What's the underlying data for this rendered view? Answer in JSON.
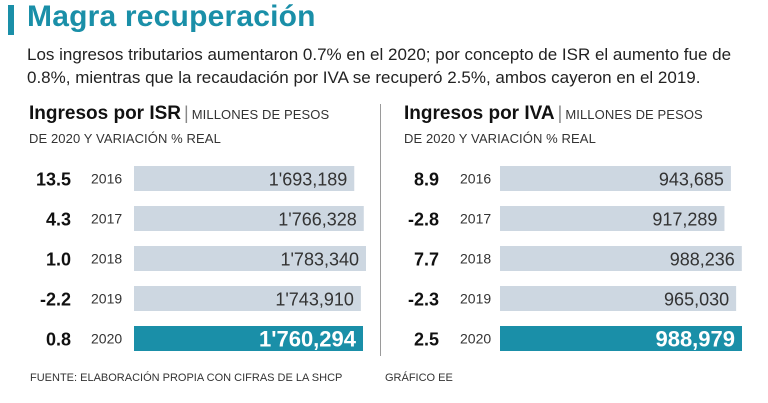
{
  "title": "Magra recuperación",
  "subtitle": "Los ingresos tributarios aumentaron 0.7% en el 2020; por concepto de ISR el aumento fue de 0.8%, mientras que la recaudación por IVA se recuperó 2.5%, ambos cayeron en el 2019.",
  "colors": {
    "accent": "#1a8fa8",
    "bar": "#cdd7e1",
    "text": "#111111"
  },
  "chart_data": [
    {
      "type": "bar",
      "title": "Ingresos por ISR",
      "units_line1": "MILLONES DE PESOS",
      "units_line2": "DE 2020 Y VARIACIÓN % REAL",
      "categories": [
        "2016",
        "2017",
        "2018",
        "2019",
        "2020"
      ],
      "values": [
        1693189,
        1766328,
        1783340,
        1743910,
        1760294
      ],
      "value_labels": [
        "1'693,189",
        "1'766,328",
        "1'783,340",
        "1'743,910",
        "1'760,294"
      ],
      "variation": [
        "13.5",
        "4.3",
        "1.0",
        "-2.2",
        "0.8"
      ],
      "highlight_index": 4
    },
    {
      "type": "bar",
      "title": "Ingresos por IVA",
      "units_line1": "MILLONES DE PESOS",
      "units_line2": "DE 2020 Y VARIACIÓN % REAL",
      "categories": [
        "2016",
        "2017",
        "2018",
        "2019",
        "2020"
      ],
      "values": [
        943685,
        917289,
        988236,
        965030,
        988979
      ],
      "value_labels": [
        "943,685",
        "917,289",
        "988,236",
        "965,030",
        "988,979"
      ],
      "variation": [
        "8.9",
        "-2.8",
        "7.7",
        "-2.3",
        "2.5"
      ],
      "highlight_index": 4
    }
  ],
  "footer": {
    "source": "FUENTE: ELABORACIÓN PROPIA CON CIFRAS DE LA SHCP",
    "credit": "GRÁFICO EE"
  }
}
